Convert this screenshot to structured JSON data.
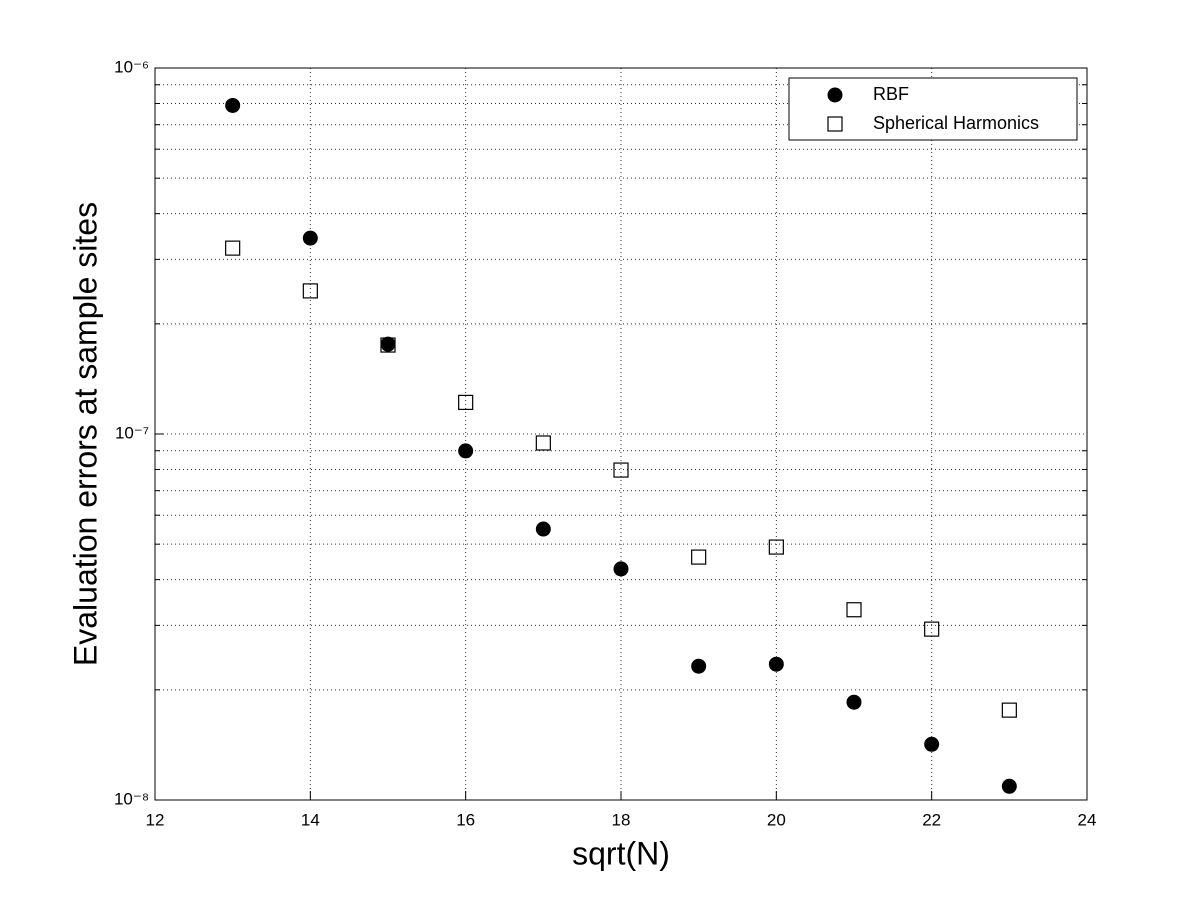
{
  "chart_data": {
    "type": "scatter",
    "xlabel": "sqrt(N)",
    "ylabel": "Evaluation errors at sample sites",
    "xlim": [
      12,
      24
    ],
    "xticks": [
      12,
      14,
      16,
      18,
      20,
      22,
      24
    ],
    "ylim": [
      1e-08,
      1e-06
    ],
    "yscale": "log",
    "yticks": [
      {
        "value": 1e-08,
        "label": "10⁻⁸"
      },
      {
        "value": 1e-07,
        "label": "10⁻⁷"
      },
      {
        "value": 1e-06,
        "label": "10⁻⁶"
      }
    ],
    "grid": true,
    "legend_position": "northeast",
    "x": [
      13,
      14,
      15,
      16,
      17,
      18,
      19,
      20,
      21,
      22,
      23
    ],
    "series": [
      {
        "name": "RBF",
        "color": "#000000",
        "marker": "circle",
        "values": [
          7.9e-07,
          3.43e-07,
          1.76e-07,
          8.99e-08,
          5.5e-08,
          4.28e-08,
          2.32e-08,
          2.35e-08,
          1.85e-08,
          1.42e-08,
          1.09e-08
        ]
      },
      {
        "name": "Spherical Harmonics",
        "color": "#000000",
        "marker": "square",
        "values": [
          3.22e-07,
          2.46e-07,
          1.75e-07,
          1.22e-07,
          9.45e-08,
          7.97e-08,
          4.61e-08,
          4.91e-08,
          3.31e-08,
          2.93e-08,
          1.76e-08
        ]
      }
    ]
  }
}
